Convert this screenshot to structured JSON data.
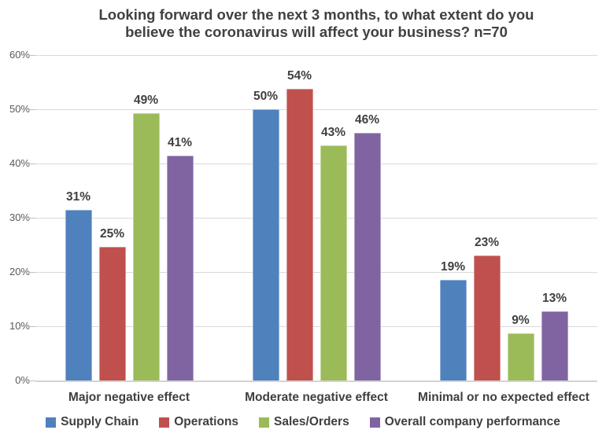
{
  "chart_data": {
    "type": "bar",
    "title": "Looking forward over the next 3 months, to what extent do you believe the coronavirus will affect your business? n=70",
    "title_lines": [
      "Looking forward over the next 3 months, to what extent do you",
      "believe the coronavirus will affect your business? n=70"
    ],
    "categories": [
      "Major negative effect",
      "Moderate negative effect",
      "Minimal or no expected effect"
    ],
    "series": [
      {
        "name": "Supply Chain",
        "color": "#4F81BD",
        "values": [
          31,
          50,
          19
        ],
        "plotted_values": [
          31.4,
          50.0,
          18.6
        ],
        "labels": [
          "31%",
          "50%",
          "19%"
        ]
      },
      {
        "name": "Operations",
        "color": "#C0504D",
        "values": [
          25,
          54,
          23
        ],
        "plotted_values": [
          24.6,
          53.7,
          23.1
        ],
        "labels": [
          "25%",
          "54%",
          "23%"
        ]
      },
      {
        "name": "Sales/Orders",
        "color": "#9BBB59",
        "values": [
          49,
          43,
          9
        ],
        "plotted_values": [
          49.3,
          43.4,
          8.7
        ],
        "labels": [
          "49%",
          "43%",
          "9%"
        ]
      },
      {
        "name": "Overall company performance",
        "color": "#8064A2",
        "values": [
          41,
          46,
          13
        ],
        "plotted_values": [
          41.4,
          45.7,
          12.8
        ],
        "labels": [
          "41%",
          "46%",
          "13%"
        ]
      }
    ],
    "xlabel": "",
    "ylabel": "",
    "ylim": [
      0,
      60
    ],
    "ytick_step": 10,
    "ytick_labels": [
      "0%",
      "10%",
      "20%",
      "30%",
      "40%",
      "50%",
      "60%"
    ],
    "grid": true,
    "legend_position": "bottom"
  },
  "colors": {
    "background": "#FFFFFF",
    "title_text": "#404040",
    "data_label_text": "#404040",
    "axis_tick_text": "#595959",
    "category_text": "#404040",
    "legend_text": "#404040",
    "gridline": "#D9D9D9",
    "axis_line": "#D3D3D3",
    "tick_mark": "#BFBFBF"
  }
}
